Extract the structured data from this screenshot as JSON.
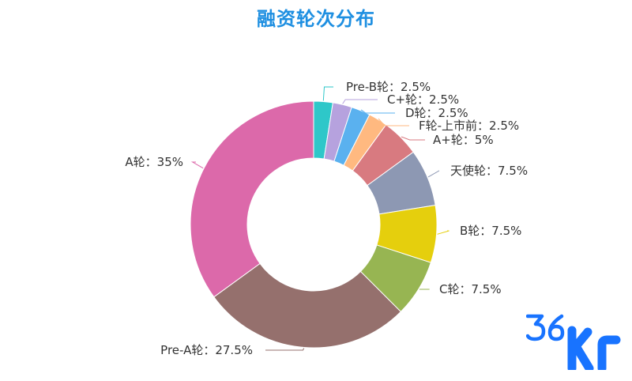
{
  "chart_data": {
    "type": "pie",
    "donut": true,
    "title": "融资轮次分布",
    "label_format": "{name}：{value}%",
    "start": "top, clockwise",
    "slices": [
      {
        "name": "Pre-B轮",
        "value": 2.5,
        "display": "2.5",
        "color": "#2ec7c9"
      },
      {
        "name": "C+轮",
        "value": 2.5,
        "display": "2.5",
        "color": "#b6a2de"
      },
      {
        "name": "D轮",
        "value": 2.5,
        "display": "2.5",
        "color": "#5ab1ef"
      },
      {
        "name": "F轮-上市前",
        "value": 2.5,
        "display": "2.5",
        "color": "#ffb980"
      },
      {
        "name": "A+轮",
        "value": 5,
        "display": "5",
        "color": "#d87a80"
      },
      {
        "name": "天使轮",
        "value": 7.5,
        "display": "7.5",
        "color": "#8d98b3"
      },
      {
        "name": "B轮",
        "value": 7.5,
        "display": "7.5",
        "color": "#e5cf0d"
      },
      {
        "name": "C轮",
        "value": 7.5,
        "display": "7.5",
        "color": "#97b552"
      },
      {
        "name": "Pre-A轮",
        "value": 27.5,
        "display": "27.5",
        "color": "#95706d"
      },
      {
        "name": "A轮",
        "value": 35,
        "display": "35",
        "color": "#dc69aa"
      }
    ]
  },
  "colors": {
    "title": "#1e8fe1",
    "label_text": "#333333"
  },
  "logo": {
    "text": "36Kr",
    "color": "#1873ff"
  }
}
